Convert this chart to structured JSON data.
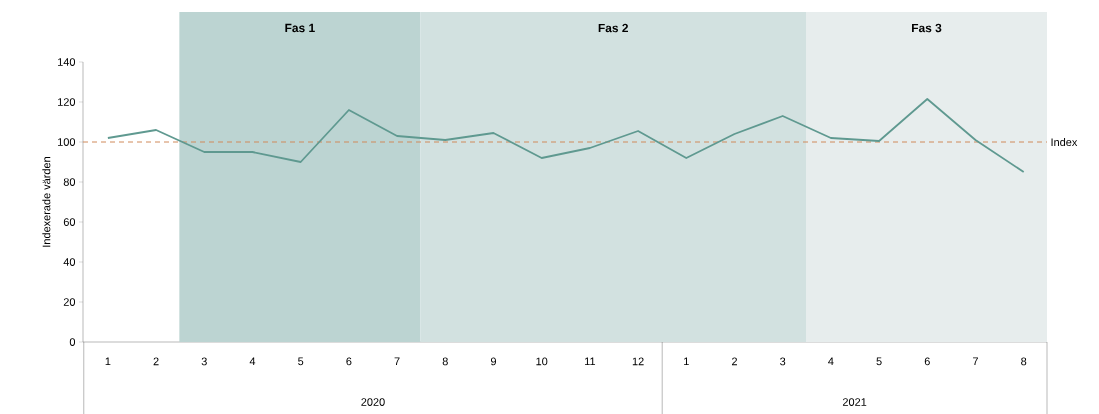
{
  "chart_data": {
    "type": "line",
    "ylabel": "Indexerade värden",
    "x": [
      "2020-01",
      "2020-02",
      "2020-03",
      "2020-04",
      "2020-05",
      "2020-06",
      "2020-07",
      "2020-08",
      "2020-09",
      "2020-10",
      "2020-11",
      "2020-12",
      "2021-01",
      "2021-02",
      "2021-03",
      "2021-04",
      "2021-05",
      "2021-06",
      "2021-07",
      "2021-08"
    ],
    "xlim": [
      "2019-12-16",
      "2021-08-16"
    ],
    "xticks": [
      {
        "value": "2020-01",
        "label": "1"
      },
      {
        "value": "2020-02",
        "label": "2"
      },
      {
        "value": "2020-03",
        "label": "3"
      },
      {
        "value": "2020-04",
        "label": "4"
      },
      {
        "value": "2020-05",
        "label": "5"
      },
      {
        "value": "2020-06",
        "label": "6"
      },
      {
        "value": "2020-07",
        "label": "7"
      },
      {
        "value": "2020-08",
        "label": "8"
      },
      {
        "value": "2020-09",
        "label": "9"
      },
      {
        "value": "2020-10",
        "label": "10"
      },
      {
        "value": "2020-11",
        "label": "11"
      },
      {
        "value": "2020-12",
        "label": "12"
      },
      {
        "value": "2021-01",
        "label": "1"
      },
      {
        "value": "2021-02",
        "label": "2"
      },
      {
        "value": "2021-03",
        "label": "3"
      },
      {
        "value": "2021-04",
        "label": "4"
      },
      {
        "value": "2021-05",
        "label": "5"
      },
      {
        "value": "2021-06",
        "label": "6"
      },
      {
        "value": "2021-07",
        "label": "7"
      },
      {
        "value": "2021-08",
        "label": "8"
      }
    ],
    "series": [
      {
        "color": "#5f9990",
        "values": [
          102,
          106,
          95,
          95,
          90,
          116,
          103,
          101,
          104.5,
          92,
          97,
          105.5,
          92,
          104,
          113,
          102,
          100.5,
          121.5,
          101,
          85
        ]
      }
    ],
    "ylim": [
      0,
      140
    ],
    "yticks": [
      0,
      20,
      40,
      60,
      80,
      100,
      120,
      140
    ],
    "ref_lines": [
      {
        "axis": "y",
        "value": 100,
        "label": "Index",
        "color": "#d08a5a",
        "line_style": "dashed"
      }
    ],
    "bands": [
      {
        "axis": "x",
        "from": "2020-02-15",
        "to": "2020-07-16",
        "label": "Fas 1",
        "color": "#bcd4d2"
      },
      {
        "axis": "x",
        "from": "2020-07-16",
        "to": "2021-03-16",
        "label": "Fas 2",
        "color": "#d2e1e0"
      },
      {
        "axis": "x",
        "from": "2021-03-16",
        "to": "2021-08-16",
        "label": "Fas 3",
        "color": "#e7eded"
      }
    ],
    "annotations": [
      "2020",
      "2021"
    ],
    "marker": "none",
    "line_style": "solid",
    "grid": false
  }
}
